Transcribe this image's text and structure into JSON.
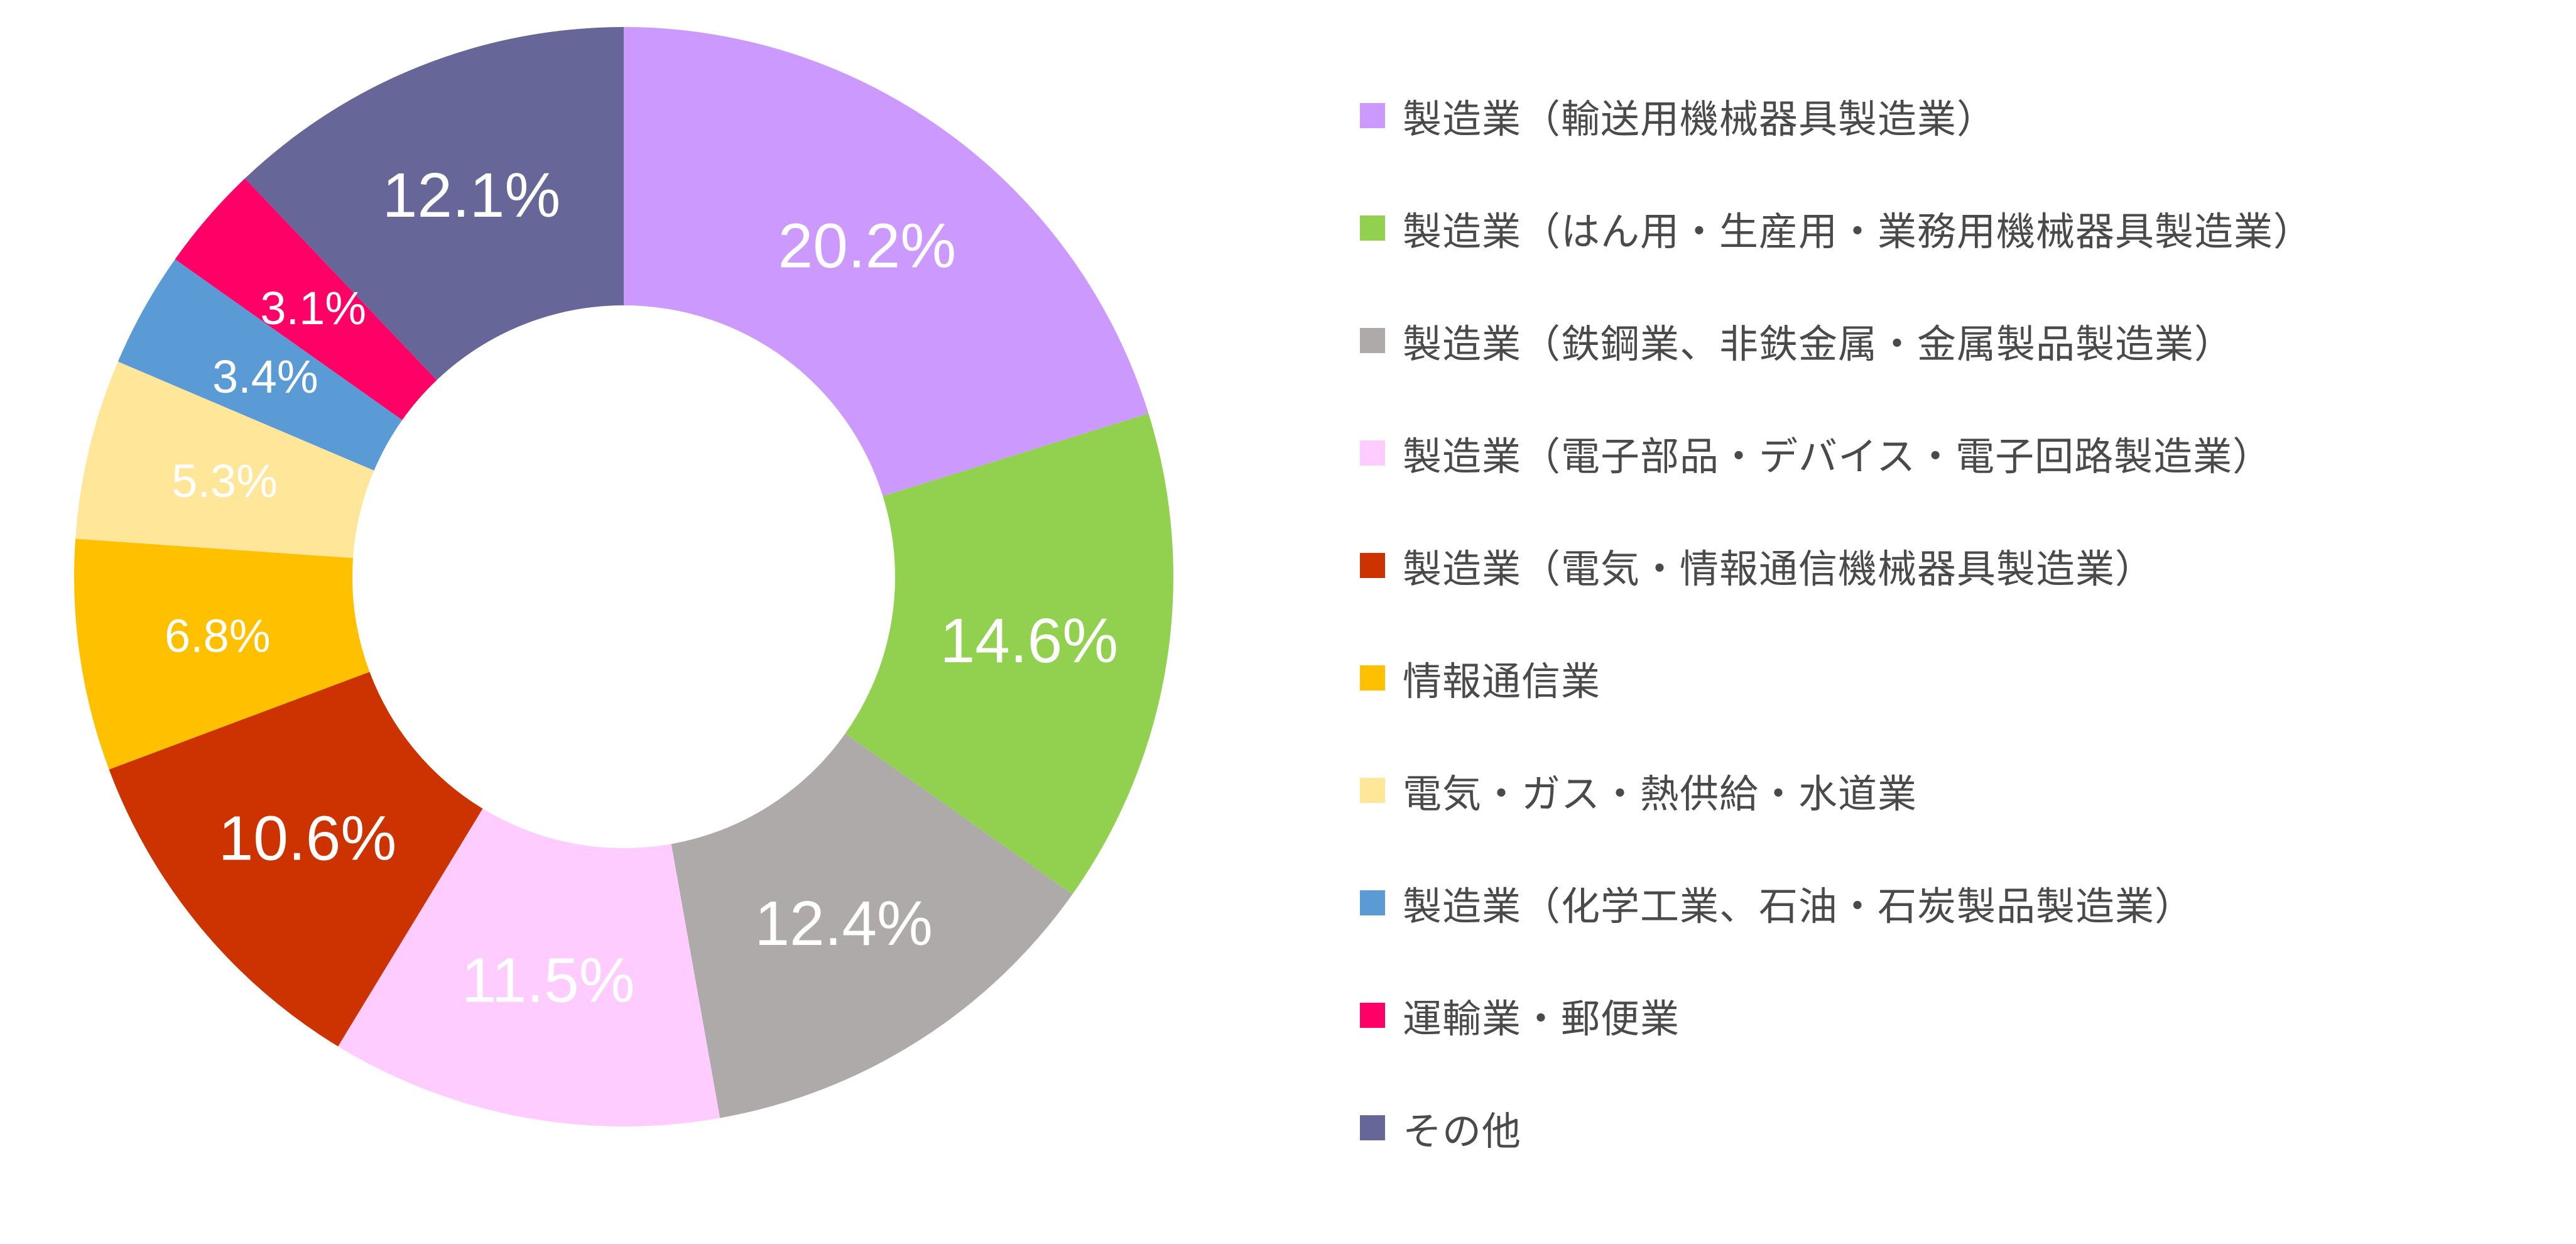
{
  "chart_data": {
    "type": "pie",
    "donut": true,
    "unit": "%",
    "legend_position": "right",
    "slices": [
      {
        "label": "製造業（輸送用機械器具製造業）",
        "value": 20.2,
        "value_label": "20.2%",
        "color": "#CC99FF",
        "label_color": "#FFFFFF"
      },
      {
        "label": "製造業（はん用・生産用・業務用機械器具製造業）",
        "value": 14.6,
        "value_label": "14.6%",
        "color": "#92D050",
        "label_color": "#FFFFFF"
      },
      {
        "label": "製造業（鉄鋼業、非鉄金属・金属製品製造業）",
        "value": 12.4,
        "value_label": "12.4%",
        "color": "#AEAAAA",
        "label_color": "#FFFFFF"
      },
      {
        "label": "製造業（電子部品・デバイス・電子回路製造業）",
        "value": 11.5,
        "value_label": "11.5%",
        "color": "#FFCCFF",
        "label_color": "#FFFFFF"
      },
      {
        "label": "製造業（電気・情報通信機械器具製造業）",
        "value": 10.6,
        "value_label": "10.6%",
        "color": "#CC3300",
        "label_color": "#FFFFFF"
      },
      {
        "label": "情報通信業",
        "value": 6.8,
        "value_label": "6.8%",
        "color": "#FFC000",
        "label_color": "#FFFFFF"
      },
      {
        "label": "電気・ガス・熱供給・水道業",
        "value": 5.3,
        "value_label": "5.3%",
        "color": "#FFE699",
        "label_color": "#FFFFFF"
      },
      {
        "label": "製造業（化学工業、石油・石炭製品製造業）",
        "value": 3.4,
        "value_label": "3.4%",
        "color": "#5B9BD5",
        "label_color": "#FFFFFF"
      },
      {
        "label": "運輸業・郵便業",
        "value": 3.1,
        "value_label": "3.1%",
        "color": "#FF0066",
        "label_color": "#FFFFFF"
      },
      {
        "label": "その他",
        "value": 12.1,
        "value_label": "12.1%",
        "color": "#666699",
        "label_color": "#FFFFFF"
      }
    ]
  }
}
